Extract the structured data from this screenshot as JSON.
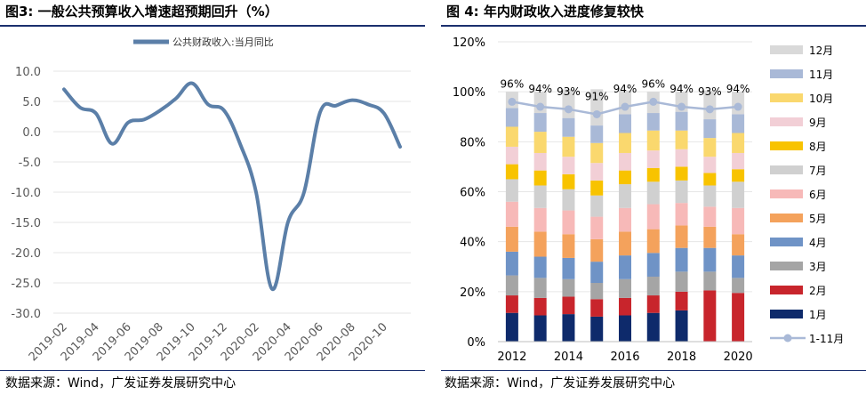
{
  "colors": {
    "title_rule": "#1b2f6e",
    "line": "#5b7fa8",
    "grid": "#d9d9d9",
    "axis_text": "#595959"
  },
  "left": {
    "title": "图3:  一般公共预算收入增速超预期回升（%）",
    "source": "数据来源：Wind，广发证券发展研究中心"
  },
  "right": {
    "title": "图 4:  年内财政收入进度修复较快",
    "source": "数据来源：Wind，广发证券发展研究中心"
  },
  "chart_data": [
    {
      "type": "line",
      "title": "一般公共预算收入增速超预期回升（%）",
      "legend": [
        "公共财政收入:当月同比"
      ],
      "ylim": [
        -30,
        10
      ],
      "yticks": [
        "10.0",
        "5.0",
        "0.0",
        "-5.0",
        "-10.0",
        "-15.0",
        "-20.0",
        "-25.0",
        "-30.0"
      ],
      "ytick_values": [
        10,
        5,
        0,
        -5,
        -10,
        -15,
        -20,
        -25,
        -30
      ],
      "xtick_labels": [
        "2019-02",
        "2019-04",
        "2019-06",
        "2019-08",
        "2019-10",
        "2019-12",
        "2020-02",
        "2020-04",
        "2020-06",
        "2020-08",
        "2020-10"
      ],
      "x": [
        "2019-02",
        "2019-03",
        "2019-04",
        "2019-05",
        "2019-06",
        "2019-07",
        "2019-08",
        "2019-09",
        "2019-10",
        "2019-11",
        "2019-12",
        "2020-01",
        "2020-02",
        "2020-03",
        "2020-04",
        "2020-05",
        "2020-06",
        "2020-07",
        "2020-08",
        "2020-09",
        "2020-10",
        "2020-11"
      ],
      "series": [
        {
          "name": "公共财政收入:当月同比",
          "values": [
            7.0,
            4.0,
            3.0,
            -2.0,
            1.5,
            2.0,
            3.5,
            5.5,
            8.0,
            4.5,
            3.5,
            -2.0,
            -10.0,
            -26.0,
            -14.9,
            -10.0,
            3.2,
            4.3,
            5.2,
            4.5,
            3.0,
            -2.5
          ]
        }
      ]
    },
    {
      "type": "bar",
      "stacked": true,
      "title": "年内财政收入进度修复较快",
      "ylim": [
        0,
        120
      ],
      "yticks": [
        "0%",
        "20%",
        "40%",
        "60%",
        "80%",
        "100%",
        "120%"
      ],
      "ytick_values": [
        0,
        20,
        40,
        60,
        80,
        100,
        120
      ],
      "categories": [
        "2012",
        "2013",
        "2014",
        "2015",
        "2016",
        "2017",
        "2018",
        "2019",
        "2020"
      ],
      "xtick_labels": [
        "2012",
        "2014",
        "2016",
        "2018",
        "2020"
      ],
      "series": [
        {
          "name": "1月",
          "color": "#0e2a6b",
          "values": [
            11.5,
            10.5,
            11.0,
            10.0,
            10.5,
            11.5,
            12.5,
            0,
            0
          ]
        },
        {
          "name": "2月",
          "color": "#c8252c",
          "values": [
            7.0,
            7.0,
            7.0,
            7.0,
            7.0,
            7.0,
            7.5,
            20.5,
            19.5
          ]
        },
        {
          "name": "3月",
          "color": "#a5a5a5",
          "values": [
            8.0,
            8.0,
            7.0,
            6.5,
            7.5,
            7.5,
            8.0,
            7.5,
            6.0
          ]
        },
        {
          "name": "4月",
          "color": "#6f93c6",
          "values": [
            9.5,
            8.5,
            8.5,
            8.5,
            9.5,
            9.5,
            9.5,
            9.5,
            9.0
          ]
        },
        {
          "name": "5月",
          "color": "#f4a25c",
          "values": [
            10.0,
            10.0,
            9.5,
            9.0,
            9.5,
            9.5,
            9.0,
            8.5,
            8.5
          ]
        },
        {
          "name": "6月",
          "color": "#f7b9b8",
          "values": [
            10.0,
            9.5,
            9.5,
            9.0,
            9.5,
            10.0,
            9.0,
            8.0,
            10.5
          ]
        },
        {
          "name": "7月",
          "color": "#d0d0d0",
          "values": [
            9.0,
            9.0,
            8.5,
            8.5,
            9.5,
            9.0,
            9.0,
            8.5,
            10.5
          ]
        },
        {
          "name": "8月",
          "color": "#f8c300",
          "values": [
            6.0,
            6.0,
            6.0,
            6.0,
            5.5,
            5.5,
            5.5,
            5.0,
            5.0
          ]
        },
        {
          "name": "9月",
          "color": "#f2cfd6",
          "values": [
            7.0,
            7.0,
            7.0,
            7.0,
            7.0,
            7.0,
            7.0,
            6.5,
            6.5
          ]
        },
        {
          "name": "10月",
          "color": "#fad86e",
          "values": [
            8.0,
            8.5,
            8.0,
            8.0,
            8.0,
            8.0,
            7.5,
            7.5,
            8.0
          ]
        },
        {
          "name": "11月",
          "color": "#a9b9d7",
          "values": [
            7.5,
            7.5,
            7.5,
            7.0,
            7.5,
            7.0,
            7.5,
            7.5,
            7.5
          ]
        },
        {
          "name": "12月",
          "color": "#d9d9d9",
          "values": [
            6.5,
            8.5,
            11.5,
            14.5,
            9.5,
            8.5,
            8.0,
            11.5,
            9.0
          ]
        }
      ],
      "line_series": {
        "name": "1-11月",
        "color": "#a9b9d7",
        "values": [
          96,
          94,
          93,
          91,
          94,
          96,
          94,
          93,
          94
        ],
        "labels": [
          "96%",
          "94%",
          "93%",
          "91%",
          "94%",
          "96%",
          "94%",
          "93%",
          "94%"
        ]
      },
      "legend_order": [
        "12月",
        "11月",
        "10月",
        "9月",
        "8月",
        "7月",
        "6月",
        "5月",
        "4月",
        "3月",
        "2月",
        "1月",
        "1-11月"
      ]
    }
  ]
}
